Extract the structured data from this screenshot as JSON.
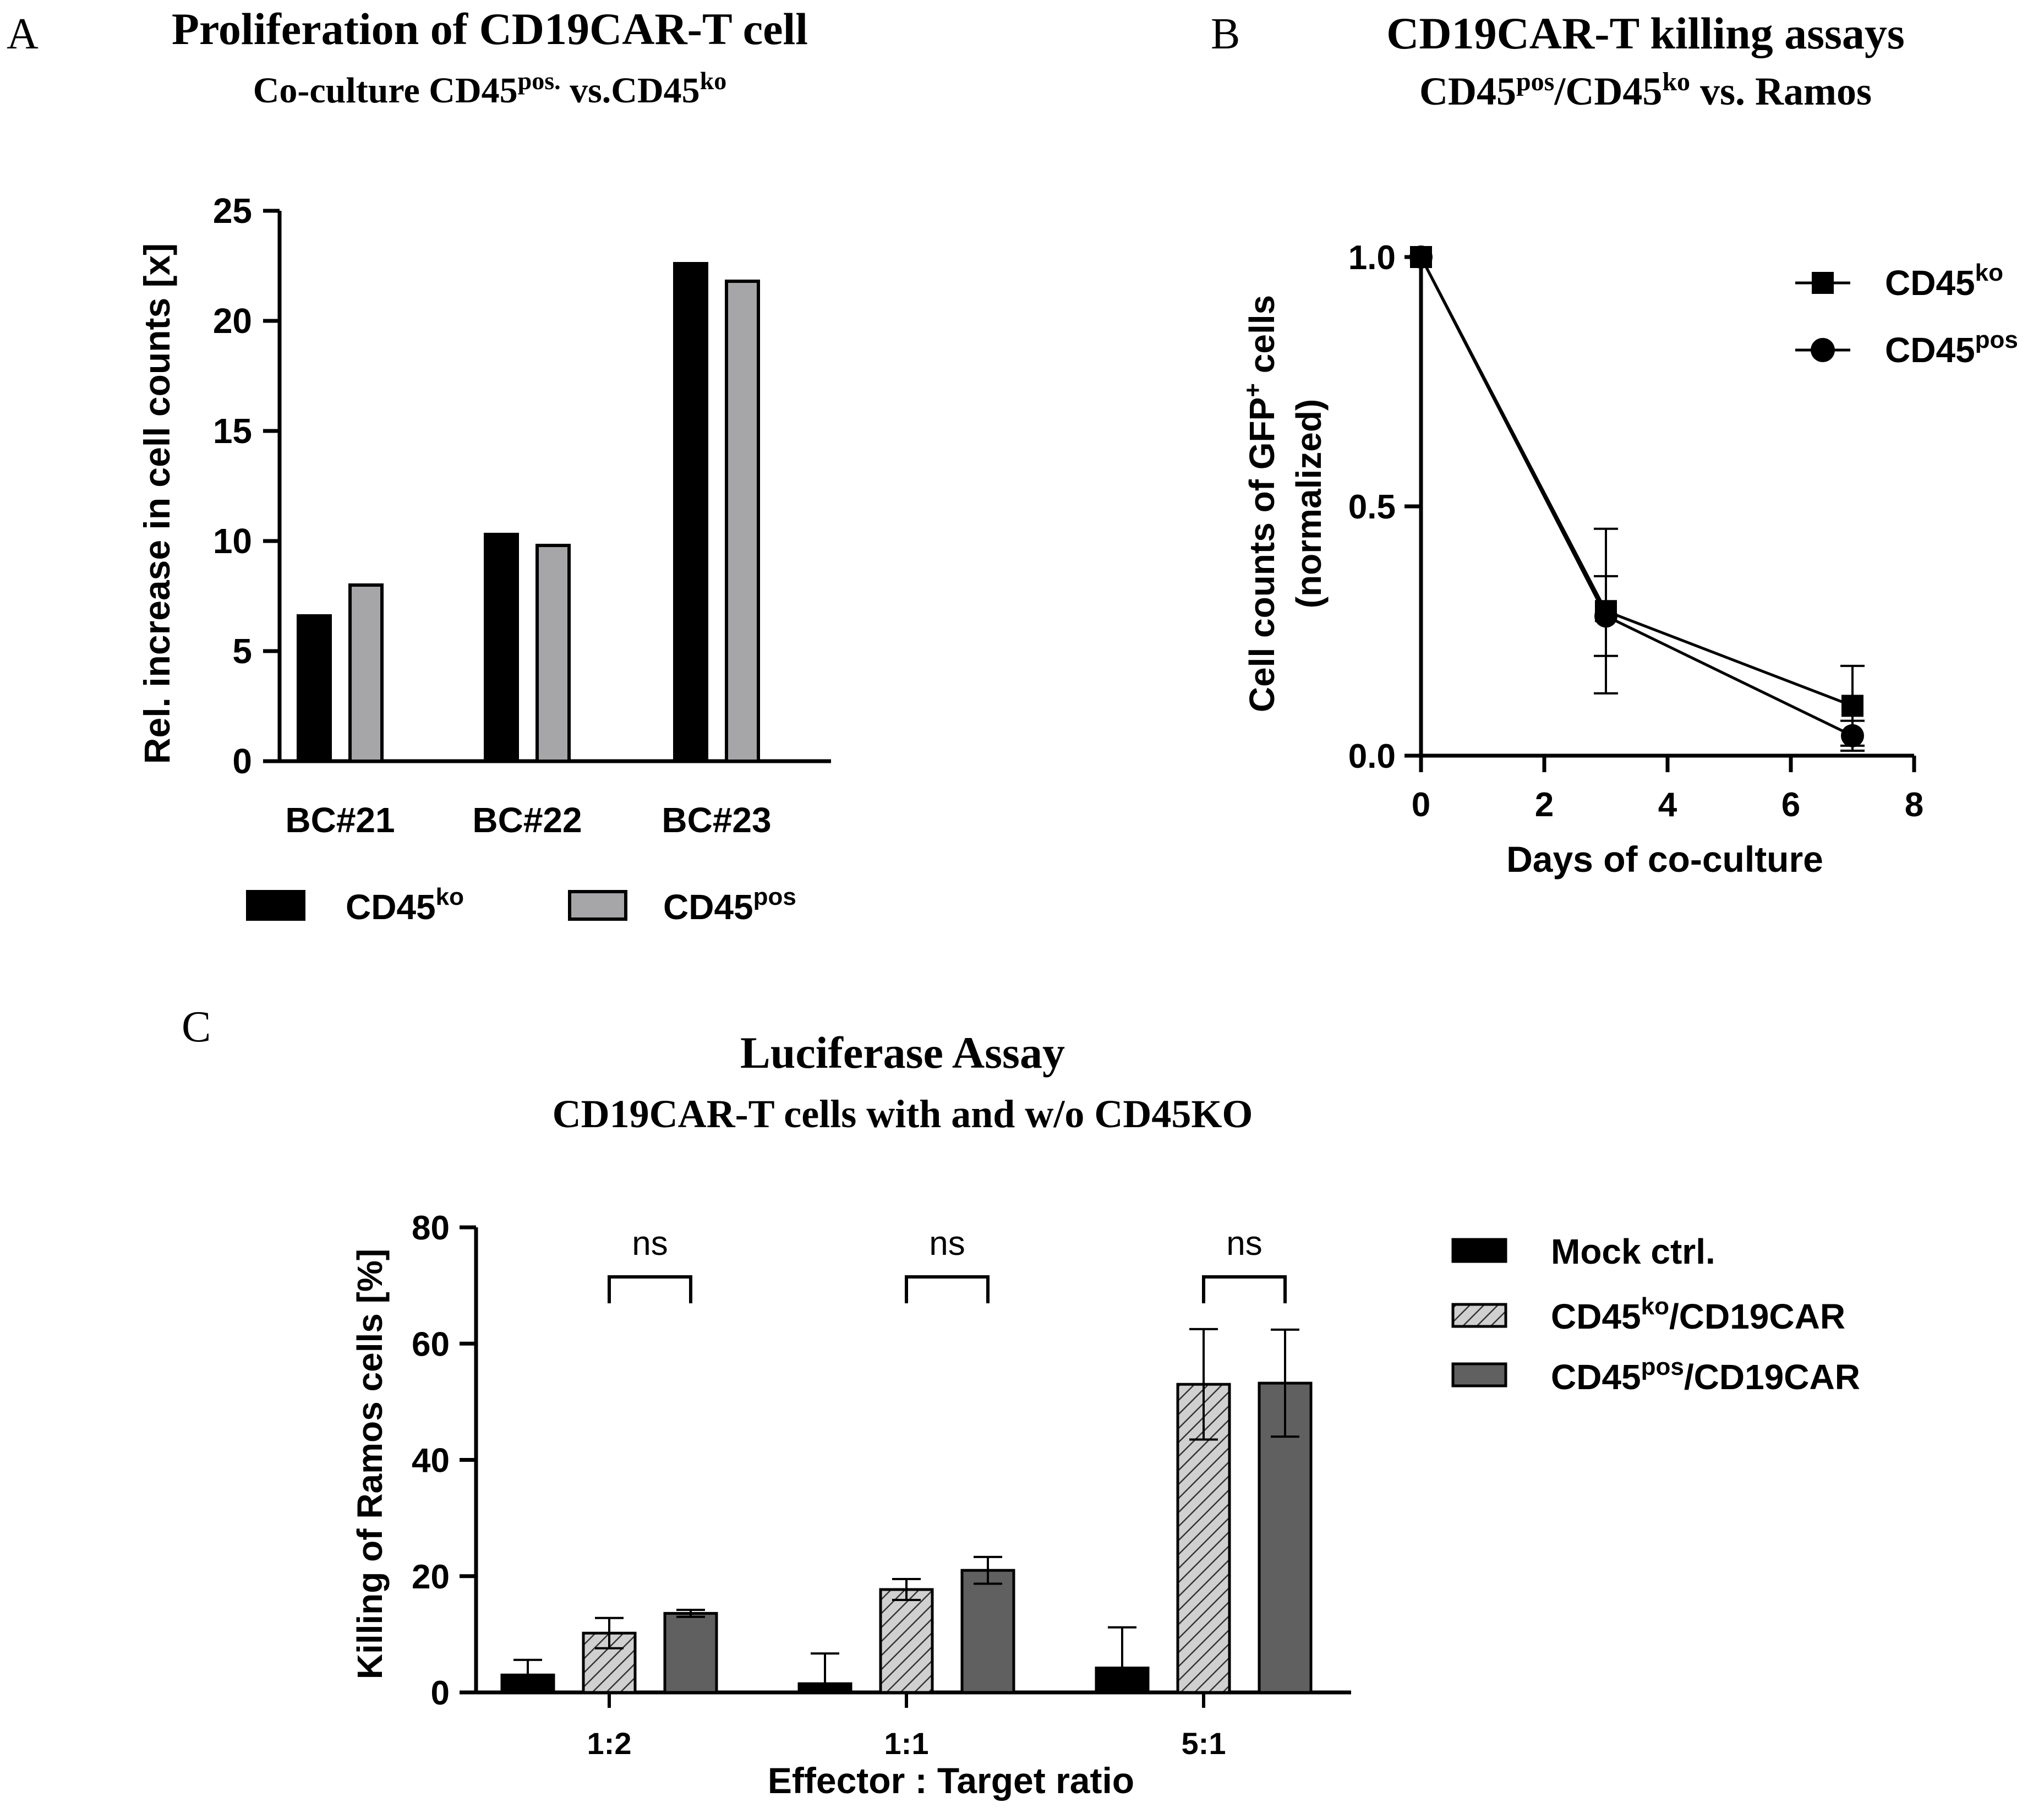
{
  "chart_data": [
    {
      "panel": "A",
      "type": "bar",
      "title": "Proliferation of CD19CAR-T cell",
      "subtitle_parts": [
        "Co-culture CD45",
        "pos.",
        " vs.CD45",
        "ko"
      ],
      "xlabel": "",
      "ylabel": "Rel. increase in cell counts [x]",
      "ylim": [
        0,
        25
      ],
      "yticks": [
        "0",
        "5",
        "10",
        "15",
        "20",
        "25"
      ],
      "categories": [
        "BC#21",
        "BC#22",
        "BC#23"
      ],
      "series": [
        {
          "name": "CD45",
          "sup": "ko",
          "color": "#000000",
          "values": [
            6.6,
            10.3,
            22.6
          ]
        },
        {
          "name": "CD45",
          "sup": "pos",
          "color": "#a6a6a8",
          "values": [
            8.0,
            9.8,
            21.8
          ]
        }
      ],
      "legend_position": "bottom"
    },
    {
      "panel": "B",
      "type": "line",
      "title": "CD19CAR-T killing assays",
      "subtitle_parts": [
        "CD45",
        "pos",
        "/CD45",
        "ko",
        " vs. Ramos"
      ],
      "xlabel": "Days of co-culture",
      "ylabel_parts": [
        "Cell counts of GFP",
        "+",
        " cells"
      ],
      "ylabel2": "(normalized)",
      "xlim": [
        0,
        8
      ],
      "ylim": [
        0,
        1.0
      ],
      "xticks": [
        "0",
        "2",
        "4",
        "6",
        "8"
      ],
      "yticks": [
        "0.0",
        "0.5",
        "1.0"
      ],
      "x": [
        0,
        3,
        7
      ],
      "series": [
        {
          "name": "CD45",
          "sup": "ko",
          "marker": "square",
          "values": [
            1.0,
            0.29,
            0.1
          ],
          "errors": [
            0,
            0.165,
            0.08
          ]
        },
        {
          "name": "CD45",
          "sup": "pos",
          "marker": "circle",
          "values": [
            1.0,
            0.28,
            0.04
          ],
          "errors": [
            0,
            0.08,
            0.03
          ]
        }
      ],
      "legend_position": "top-right"
    },
    {
      "panel": "C",
      "type": "bar",
      "title": "Luciferase Assay",
      "subtitle": "CD19CAR-T cells with and w/o CD45KO",
      "xlabel": "Effector : Target ratio",
      "ylabel": "Killing of Ramos cells [%]",
      "ylim": [
        0,
        80
      ],
      "yticks": [
        "0",
        "20",
        "40",
        "60",
        "80"
      ],
      "categories": [
        "1:2",
        "1:1",
        "5:1"
      ],
      "series": [
        {
          "name": "Mock ctrl.",
          "pattern": "solid",
          "color": "#000000",
          "values": [
            3.0,
            1.5,
            4.2
          ],
          "errors": [
            2.6,
            5.2,
            7.0
          ]
        },
        {
          "name_parts": [
            "CD45",
            "ko",
            "/CD19CAR"
          ],
          "pattern": "hatched",
          "color": "#c8c8c8",
          "values": [
            10.2,
            17.7,
            53.0
          ],
          "errors": [
            2.6,
            1.8,
            9.5
          ]
        },
        {
          "name_parts": [
            "CD45",
            "pos",
            "/CD19CAR"
          ],
          "pattern": "solid",
          "color": "#606060",
          "values": [
            13.6,
            21.0,
            53.2
          ],
          "errors": [
            0.6,
            2.3,
            9.2
          ]
        }
      ],
      "annotations": [
        "ns",
        "ns",
        "ns"
      ],
      "legend_position": "right"
    }
  ]
}
